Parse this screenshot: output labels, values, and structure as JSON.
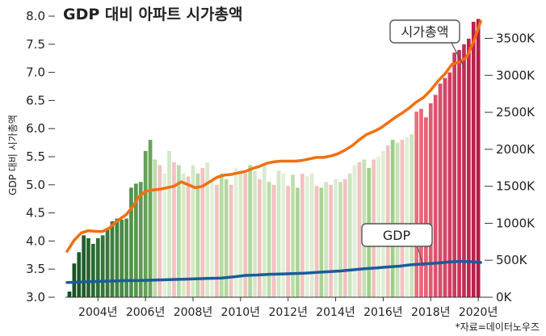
{
  "chart_data": {
    "type": "bar+line",
    "title": "GDP 대비 아파트 시가총액",
    "y_left_label": "GDP 대비 시가총액",
    "y_left_ticks": [
      "8.0",
      "7.5",
      "7.0",
      "6.5",
      "6.0",
      "5.5",
      "5.0",
      "4.5",
      "4.0",
      "3.5",
      "3.0"
    ],
    "y_left_range": [
      3.0,
      8.0
    ],
    "y_right_ticks": [
      "3500K",
      "3000K",
      "2500K",
      "2000K",
      "1500K",
      "1000K",
      "500K",
      "0K"
    ],
    "y_right_range": [
      0,
      3800
    ],
    "x_ticks": [
      "2004년",
      "2006년",
      "2008년",
      "2010년",
      "2012년",
      "2014년",
      "2016년",
      "2018년",
      "2020년"
    ],
    "x_range": [
      2003.0,
      2020.5
    ],
    "source": "*자료=데이터노우즈",
    "series": [
      {
        "name": "GDP 대비 시가총액",
        "kind": "bar",
        "axis": "left",
        "x": [
          2003.1,
          2003.3,
          2003.5,
          2003.7,
          2003.9,
          2004.1,
          2004.3,
          2004.5,
          2004.7,
          2004.9,
          2005.1,
          2005.3,
          2005.5,
          2005.7,
          2005.9,
          2006.1,
          2006.3,
          2006.5,
          2006.7,
          2006.9,
          2007.1,
          2007.3,
          2007.5,
          2007.7,
          2007.9,
          2008.1,
          2008.3,
          2008.5,
          2008.7,
          2008.9,
          2009.1,
          2009.3,
          2009.5,
          2009.7,
          2009.9,
          2010.1,
          2010.3,
          2010.5,
          2010.7,
          2010.9,
          2011.1,
          2011.3,
          2011.5,
          2011.7,
          2011.9,
          2012.1,
          2012.3,
          2012.5,
          2012.7,
          2012.9,
          2013.1,
          2013.3,
          2013.5,
          2013.7,
          2013.9,
          2014.1,
          2014.3,
          2014.5,
          2014.7,
          2014.9,
          2015.1,
          2015.3,
          2015.5,
          2015.7,
          2015.9,
          2016.1,
          2016.3,
          2016.5,
          2016.7,
          2016.9,
          2017.1,
          2017.3,
          2017.5,
          2017.7,
          2017.9,
          2018.1,
          2018.3,
          2018.5,
          2018.7,
          2018.9,
          2019.1,
          2019.3,
          2019.5,
          2019.7,
          2019.9,
          2020.1,
          2020.3
        ],
        "values": [
          3.1,
          3.6,
          3.8,
          4.1,
          4.05,
          3.95,
          4.05,
          4.1,
          4.2,
          4.35,
          4.4,
          4.38,
          4.4,
          4.95,
          5.02,
          5.05,
          5.6,
          5.8,
          5.45,
          5.35,
          5.2,
          5.6,
          5.4,
          5.35,
          5.2,
          5.15,
          5.35,
          5.2,
          5.3,
          5.4,
          5.05,
          5.0,
          5.2,
          5.1,
          5.0,
          5.3,
          5.25,
          5.2,
          5.35,
          5.25,
          5.1,
          5.35,
          5.05,
          5.0,
          5.25,
          5.2,
          4.98,
          5.18,
          4.95,
          5.2,
          5.15,
          5.2,
          4.98,
          4.95,
          5.05,
          5.0,
          5.1,
          5.05,
          5.1,
          5.2,
          5.35,
          5.4,
          5.45,
          5.3,
          5.45,
          5.5,
          5.6,
          5.7,
          5.8,
          5.75,
          5.8,
          5.85,
          5.9,
          6.3,
          6.35,
          6.2,
          6.45,
          6.6,
          6.8,
          6.9,
          7.0,
          7.35,
          7.4,
          7.5,
          7.6,
          7.9,
          7.95
        ]
      },
      {
        "name": "시가총액",
        "kind": "line",
        "axis": "right",
        "color": "#f07010",
        "x": [
          2003.0,
          2003.3,
          2003.6,
          2003.9,
          2004.2,
          2004.5,
          2004.8,
          2005.0,
          2005.2,
          2005.5,
          2005.8,
          2006.0,
          2006.3,
          2006.6,
          2006.9,
          2007.2,
          2007.5,
          2007.8,
          2008.1,
          2008.4,
          2008.7,
          2009.0,
          2009.3,
          2009.6,
          2009.9,
          2010.2,
          2010.5,
          2010.8,
          2011.1,
          2011.4,
          2011.7,
          2012.0,
          2012.3,
          2012.6,
          2012.9,
          2013.2,
          2013.5,
          2013.8,
          2014.1,
          2014.4,
          2014.7,
          2015.0,
          2015.3,
          2015.6,
          2015.9,
          2016.2,
          2016.5,
          2016.8,
          2017.1,
          2017.4,
          2017.7,
          2018.0,
          2018.3,
          2018.6,
          2018.9,
          2019.2,
          2019.5,
          2019.8,
          2020.1,
          2020.4
        ],
        "values": [
          620,
          770,
          870,
          900,
          890,
          890,
          940,
          1000,
          1050,
          1120,
          1240,
          1350,
          1430,
          1450,
          1460,
          1480,
          1500,
          1560,
          1520,
          1480,
          1500,
          1560,
          1620,
          1650,
          1660,
          1680,
          1700,
          1740,
          1770,
          1810,
          1830,
          1840,
          1840,
          1840,
          1850,
          1870,
          1890,
          1890,
          1910,
          1940,
          1990,
          2050,
          2130,
          2200,
          2240,
          2290,
          2360,
          2430,
          2490,
          2560,
          2640,
          2700,
          2800,
          2920,
          3020,
          3150,
          3180,
          3240,
          3450,
          3730
        ]
      },
      {
        "name": "GDP",
        "kind": "line",
        "axis": "right",
        "color": "#1a5b9e",
        "x": [
          2003.0,
          2003.5,
          2004.0,
          2004.5,
          2005.0,
          2005.5,
          2006.0,
          2006.5,
          2007.0,
          2007.5,
          2008.0,
          2008.5,
          2009.0,
          2009.5,
          2010.0,
          2010.5,
          2011.0,
          2011.5,
          2012.0,
          2012.5,
          2013.0,
          2013.5,
          2014.0,
          2014.5,
          2015.0,
          2015.5,
          2016.0,
          2016.5,
          2017.0,
          2017.5,
          2018.0,
          2018.5,
          2019.0,
          2019.5,
          2020.0,
          2020.4
        ],
        "values": [
          200,
          205,
          210,
          215,
          220,
          225,
          225,
          230,
          235,
          240,
          245,
          250,
          255,
          260,
          275,
          295,
          300,
          310,
          315,
          320,
          325,
          335,
          345,
          355,
          370,
          385,
          395,
          410,
          420,
          440,
          450,
          460,
          475,
          485,
          480,
          470
        ]
      }
    ],
    "callouts": [
      "시가총액",
      "GDP"
    ]
  }
}
